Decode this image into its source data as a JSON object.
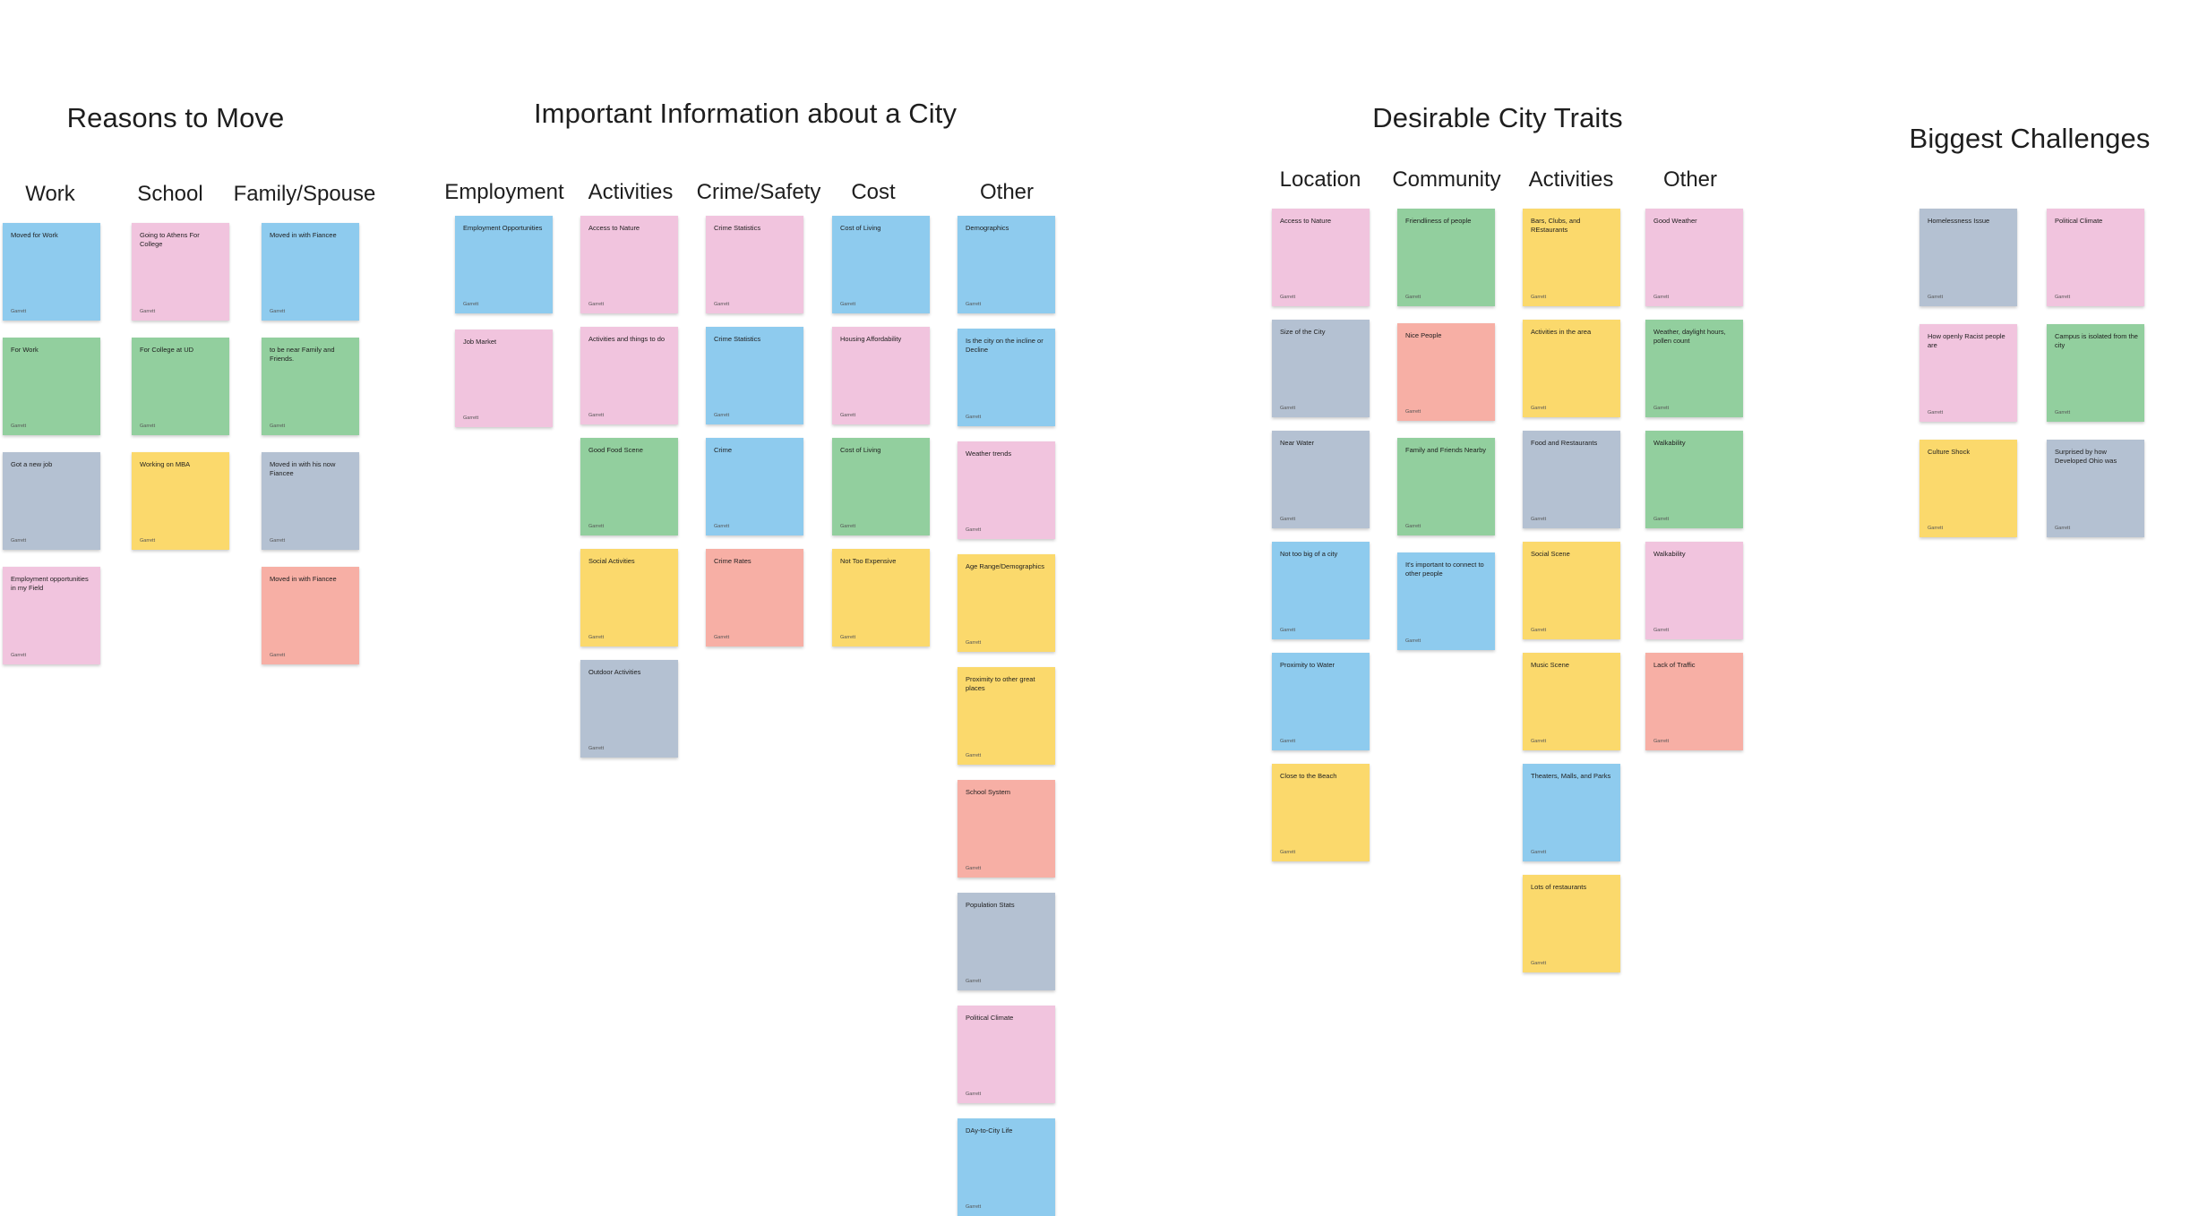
{
  "colors": {
    "blue": "#8ecbee",
    "pink": "#f1c4de",
    "green": "#92cf9e",
    "gray": "#b4c1d2",
    "yellow": "#fbd96c",
    "salmon": "#f7afa5"
  },
  "groups": [
    {
      "title": "Reasons to Move",
      "columns": [
        {
          "title": "Work",
          "notes": [
            {
              "text": "Moved for Work",
              "author": "Garrett",
              "color": "blue"
            },
            {
              "text": "For Work",
              "author": "Garrett",
              "color": "green"
            },
            {
              "text": "Got a new job",
              "author": "Garrett",
              "color": "gray"
            },
            {
              "text": "Employment opportunities in my Field",
              "author": "Garrett",
              "color": "pink"
            }
          ]
        },
        {
          "title": "School",
          "notes": [
            {
              "text": "Going to Athens For College",
              "author": "Garrett",
              "color": "pink"
            },
            {
              "text": "For College at UD",
              "author": "Garrett",
              "color": "green"
            },
            {
              "text": "Working on MBA",
              "author": "Garrett",
              "color": "yellow"
            }
          ]
        },
        {
          "title": "Family/Spouse",
          "notes": [
            {
              "text": "Moved in with Fiancee",
              "author": "Garrett",
              "color": "blue"
            },
            {
              "text": "to be near Family and Friends.",
              "author": "Garrett",
              "color": "green"
            },
            {
              "text": "Moved in with his now Fiancee",
              "author": "Garrett",
              "color": "gray"
            },
            {
              "text": "Moved in with Fiancee",
              "author": "Garrett",
              "color": "salmon"
            }
          ]
        }
      ]
    },
    {
      "title": "Important Information about a City",
      "columns": [
        {
          "title": "Employment",
          "notes": [
            {
              "text": "Employment Opportunities",
              "author": "Garrett",
              "color": "blue"
            },
            {
              "text": "Job Market",
              "author": "Garrett",
              "color": "pink"
            }
          ]
        },
        {
          "title": "Activities",
          "notes": [
            {
              "text": "Access to Nature",
              "author": "Garrett",
              "color": "pink"
            },
            {
              "text": "Activities and things to do",
              "author": "Garrett",
              "color": "pink"
            },
            {
              "text": "Good Food Scene",
              "author": "Garrett",
              "color": "green"
            },
            {
              "text": "Social Activities",
              "author": "Garrett",
              "color": "yellow"
            },
            {
              "text": "Outdoor Activities",
              "author": "Garrett",
              "color": "gray"
            }
          ]
        },
        {
          "title": "Crime/Safety",
          "notes": [
            {
              "text": "Crime Statistics",
              "author": "Garrett",
              "color": "pink"
            },
            {
              "text": "Crime Statistics",
              "author": "Garrett",
              "color": "blue"
            },
            {
              "text": "Crime",
              "author": "Garrett",
              "color": "blue"
            },
            {
              "text": "Crime Rates",
              "author": "Garrett",
              "color": "salmon"
            }
          ]
        },
        {
          "title": "Cost",
          "notes": [
            {
              "text": "Cost of Living",
              "author": "Garrett",
              "color": "blue"
            },
            {
              "text": "Housing Affordability",
              "author": "Garrett",
              "color": "pink"
            },
            {
              "text": "Cost of Living",
              "author": "Garrett",
              "color": "green"
            },
            {
              "text": "Not Too Expensive",
              "author": "Garrett",
              "color": "yellow"
            }
          ]
        },
        {
          "title": "Other",
          "notes": [
            {
              "text": "Demographics",
              "author": "Garrett",
              "color": "blue"
            },
            {
              "text": "Is the city on the incline or Decline",
              "author": "Garrett",
              "color": "blue"
            },
            {
              "text": "Weather trends",
              "author": "Garrett",
              "color": "pink"
            },
            {
              "text": "Age Range/Demographics",
              "author": "Garrett",
              "color": "yellow"
            },
            {
              "text": "Proximity to other great places",
              "author": "Garrett",
              "color": "yellow"
            },
            {
              "text": "School System",
              "author": "Garrett",
              "color": "salmon"
            },
            {
              "text": "Population Stats",
              "author": "Garrett",
              "color": "gray"
            },
            {
              "text": "Political Climate",
              "author": "Garrett",
              "color": "pink"
            },
            {
              "text": "DAy-to-City Life",
              "author": "Garrett",
              "color": "blue"
            }
          ]
        }
      ]
    },
    {
      "title": "Desirable City Traits",
      "columns": [
        {
          "title": "Location",
          "notes": [
            {
              "text": "Access to Nature",
              "author": "Garrett",
              "color": "pink"
            },
            {
              "text": "Size of the City",
              "author": "Garrett",
              "color": "gray"
            },
            {
              "text": "Near Water",
              "author": "Garrett",
              "color": "gray"
            },
            {
              "text": "Not too big of a city",
              "author": "Garrett",
              "color": "blue"
            },
            {
              "text": "Proximity to Water",
              "author": "Garrett",
              "color": "blue"
            },
            {
              "text": "Close to the Beach",
              "author": "Garrett",
              "color": "yellow"
            }
          ]
        },
        {
          "title": "Community",
          "notes": [
            {
              "text": "Friendliness of people",
              "author": "Garrett",
              "color": "green"
            },
            {
              "text": "Nice People",
              "author": "Garrett",
              "color": "salmon"
            },
            {
              "text": "Family and Friends Nearby",
              "author": "Garrett",
              "color": "green"
            },
            {
              "text": "It's important to connect to other people",
              "author": "Garrett",
              "color": "blue"
            }
          ]
        },
        {
          "title": "Activities",
          "notes": [
            {
              "text": "Bars, Clubs, and REstaurants",
              "author": "Garrett",
              "color": "yellow"
            },
            {
              "text": "Activities in the area",
              "author": "Garrett",
              "color": "yellow"
            },
            {
              "text": "Food and Restaurants",
              "author": "Garrett",
              "color": "gray"
            },
            {
              "text": "Social Scene",
              "author": "Garrett",
              "color": "yellow"
            },
            {
              "text": "Music Scene",
              "author": "Garrett",
              "color": "yellow"
            },
            {
              "text": "Theaters, Malls, and Parks",
              "author": "Garrett",
              "color": "blue"
            },
            {
              "text": "Lots of restaurants",
              "author": "Garrett",
              "color": "yellow"
            }
          ]
        },
        {
          "title": "Other",
          "notes": [
            {
              "text": "Good Weather",
              "author": "Garrett",
              "color": "pink"
            },
            {
              "text": "Weather, daylight hours, pollen count",
              "author": "Garrett",
              "color": "green"
            },
            {
              "text": "Walkability",
              "author": "Garrett",
              "color": "green"
            },
            {
              "text": "Walkability",
              "author": "Garrett",
              "color": "pink"
            },
            {
              "text": "Lack of Traffic",
              "author": "Garrett",
              "color": "salmon"
            }
          ]
        }
      ]
    },
    {
      "title": "Biggest Challenges",
      "columns": [
        {
          "title": "",
          "notes": [
            {
              "text": "Homelessness Issue",
              "author": "Garrett",
              "color": "gray"
            },
            {
              "text": "How openly Racist people are",
              "author": "Garrett",
              "color": "pink"
            },
            {
              "text": "Culture Shock",
              "author": "Garrett",
              "color": "yellow"
            }
          ]
        },
        {
          "title": "",
          "notes": [
            {
              "text": "Political Climate",
              "author": "Garrett",
              "color": "pink"
            },
            {
              "text": "Campus is isolated from the city",
              "author": "Garrett",
              "color": "green"
            },
            {
              "text": "Surprised by how Developed Ohio was",
              "author": "Garrett",
              "color": "gray"
            }
          ]
        }
      ]
    }
  ]
}
